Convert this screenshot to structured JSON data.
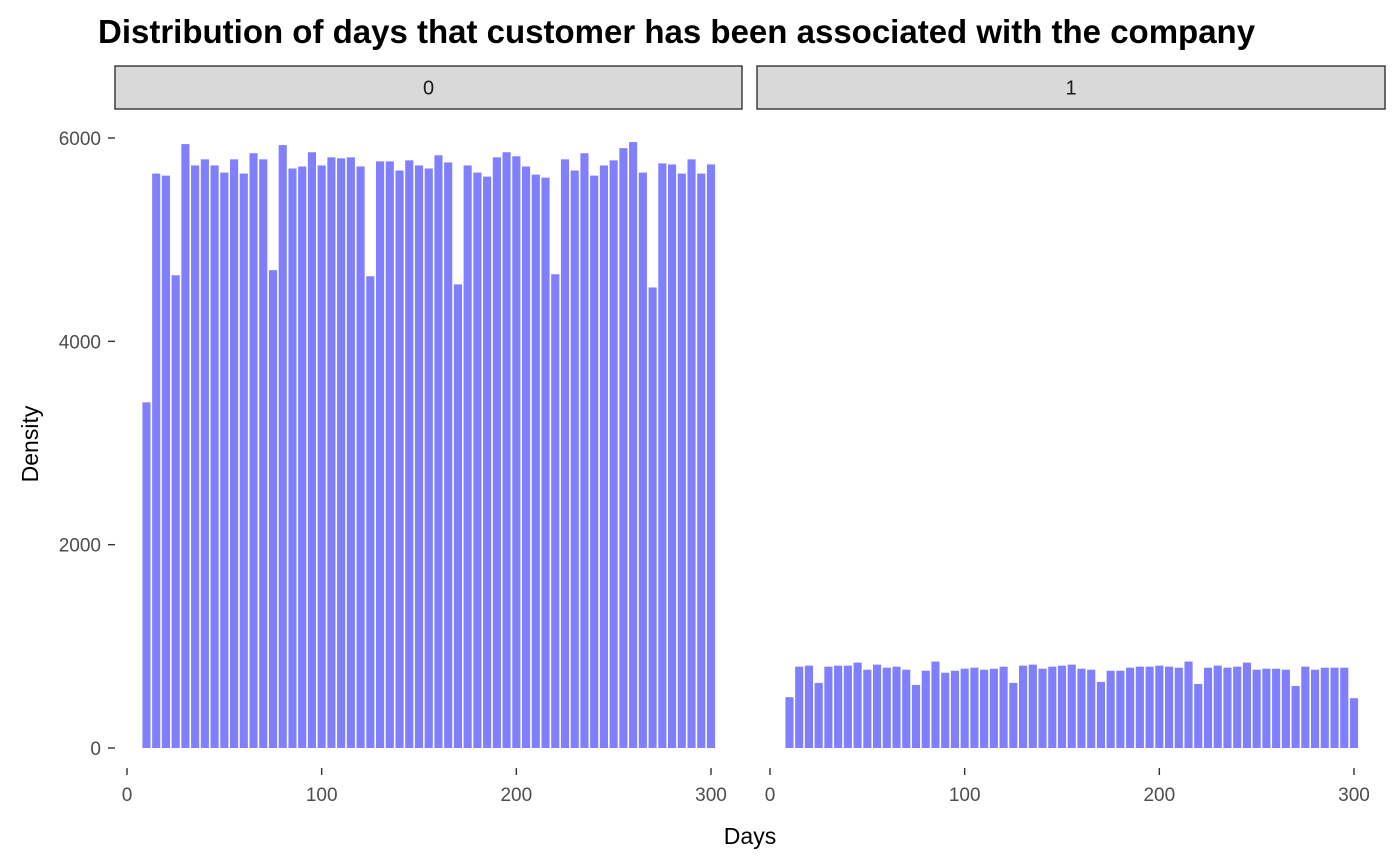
{
  "chart_data": {
    "type": "bar",
    "title": "Distribution of days that customer has been associated with the company",
    "xlabel": "Days",
    "ylabel": "Density",
    "xlim": [
      0,
      300
    ],
    "ylim": [
      0,
      6000
    ],
    "x_ticks": [
      0,
      100,
      200,
      300
    ],
    "y_ticks": [
      0,
      2000,
      4000,
      6000
    ],
    "bar_color": "#8080ff",
    "strip_color": "#d9d9d9",
    "bin_width": 5,
    "bin_centers": [
      10,
      15,
      20,
      25,
      30,
      35,
      40,
      45,
      50,
      55,
      60,
      65,
      70,
      75,
      80,
      85,
      90,
      95,
      100,
      105,
      110,
      115,
      120,
      125,
      130,
      135,
      140,
      145,
      150,
      155,
      160,
      165,
      170,
      175,
      180,
      185,
      190,
      195,
      200,
      205,
      210,
      215,
      220,
      225,
      230,
      235,
      240,
      245,
      250,
      255,
      260,
      265,
      270,
      275,
      280,
      285,
      290,
      295,
      300
    ],
    "panels": [
      {
        "label": "0",
        "values": [
          3400,
          5650,
          5630,
          4650,
          5940,
          5730,
          5790,
          5730,
          5660,
          5790,
          5650,
          5850,
          5790,
          4700,
          5930,
          5700,
          5720,
          5860,
          5730,
          5810,
          5800,
          5810,
          5720,
          4640,
          5770,
          5770,
          5680,
          5780,
          5730,
          5700,
          5830,
          5760,
          4560,
          5730,
          5660,
          5620,
          5810,
          5860,
          5820,
          5720,
          5640,
          5610,
          4660,
          5790,
          5680,
          5850,
          5630,
          5730,
          5780,
          5900,
          5960,
          5660,
          4530,
          5750,
          5740,
          5650,
          5790,
          5650,
          5740
        ]
      },
      {
        "label": "1",
        "values": [
          500,
          800,
          810,
          640,
          800,
          810,
          810,
          840,
          770,
          820,
          790,
          800,
          770,
          620,
          760,
          850,
          740,
          760,
          780,
          790,
          770,
          780,
          800,
          640,
          810,
          820,
          780,
          800,
          810,
          820,
          780,
          770,
          650,
          760,
          760,
          790,
          800,
          800,
          810,
          800,
          790,
          850,
          630,
          790,
          810,
          790,
          800,
          840,
          770,
          780,
          780,
          770,
          610,
          800,
          770,
          790,
          790,
          790,
          490
        ]
      }
    ]
  }
}
